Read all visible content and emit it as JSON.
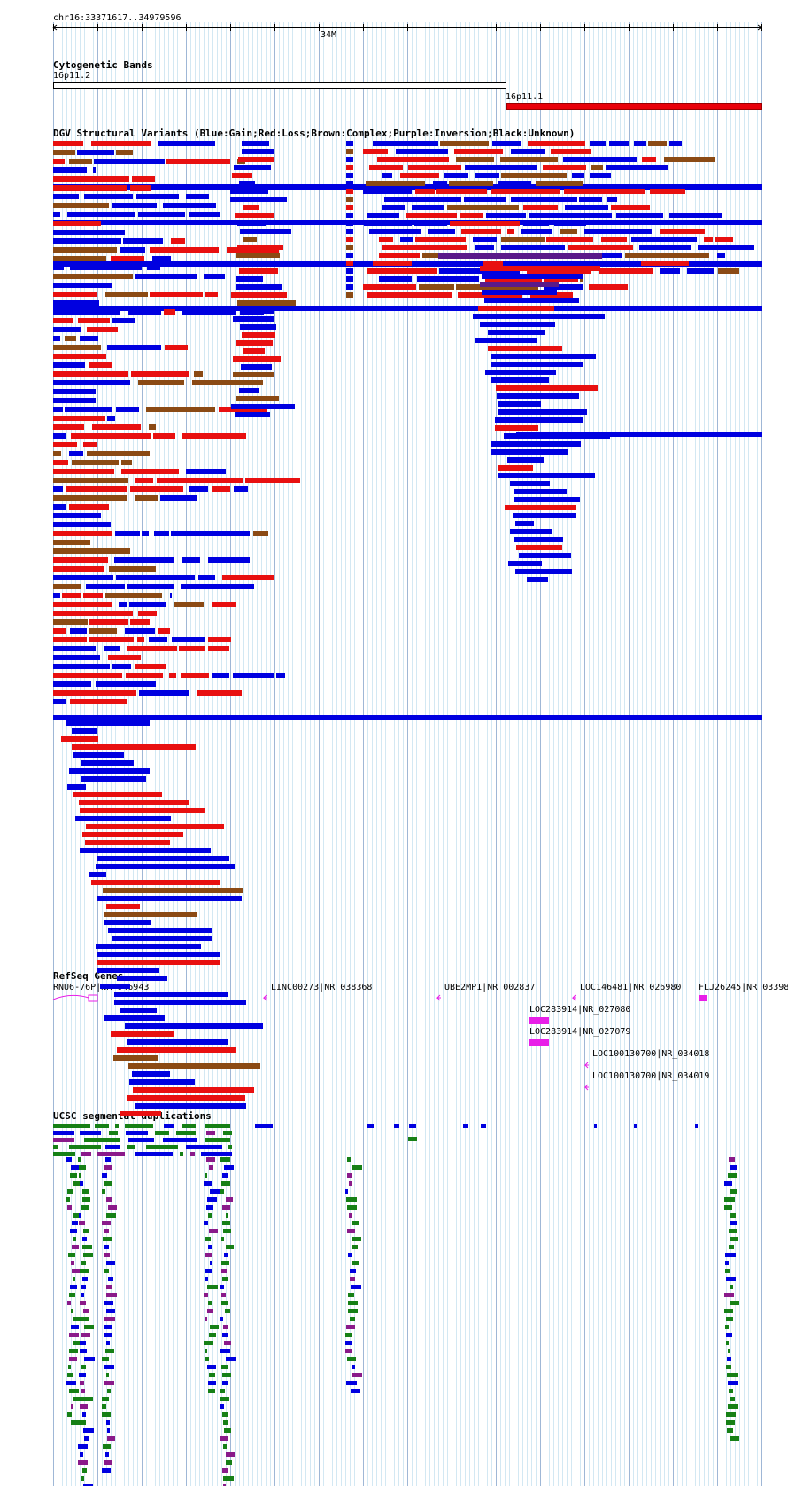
{
  "locus": "chr16:33371617..34979596",
  "ruler": {
    "tick_label": "34M"
  },
  "tracks": {
    "cytoband": {
      "title": "Cytogenetic Bands",
      "bands": [
        {
          "name": "16p11.2",
          "color": "#ffffff"
        },
        {
          "name": "16p11.1",
          "color": "#e8000a"
        }
      ]
    },
    "dgv": {
      "title": "DGV Structural Variants (Blue:Gain;Red:Loss;Brown:Complex;Purple:Inversion;Black:Unknown)",
      "colors": {
        "gain": "#0000e0",
        "loss": "#e81010",
        "complex": "#8b4a14",
        "inversion": "#5a1a8a",
        "unknown": "#000000"
      }
    },
    "refseq": {
      "title": "RefSeq Genes",
      "color": "#e81ee8",
      "genes": [
        {
          "label": "RNU6-76P|NR_046943"
        },
        {
          "label": "LINC00273|NR_038368"
        },
        {
          "label": "UBE2MP1|NR_002837"
        },
        {
          "label": "LOC146481|NR_026980"
        },
        {
          "label": "FLJ26245|NR_03398"
        },
        {
          "label": "LOC283914|NR_027080"
        },
        {
          "label": "LOC283914|NR_027079"
        },
        {
          "label": "LOC100130700|NR_034018"
        },
        {
          "label": "LOC100130700|NR_034019"
        }
      ]
    },
    "segdups": {
      "title": "UCSC segmental duplications",
      "colors": {
        "blue": "#0000e0",
        "green": "#168016",
        "purple": "#8a1a8a"
      }
    }
  }
}
